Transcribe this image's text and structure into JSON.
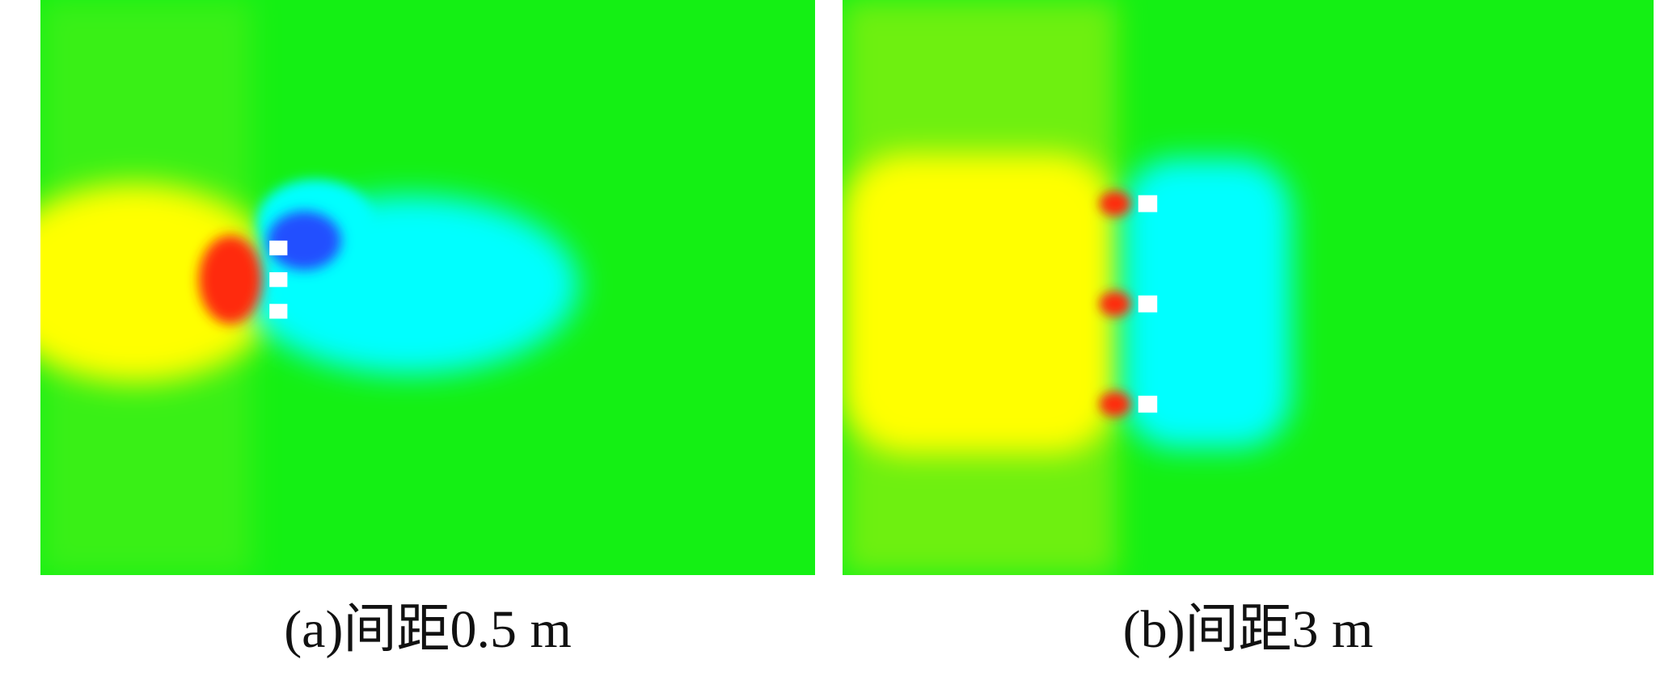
{
  "panels": [
    {
      "caption": "(a)间距0.5 m"
    },
    {
      "caption": "(b)间距3 m"
    }
  ]
}
